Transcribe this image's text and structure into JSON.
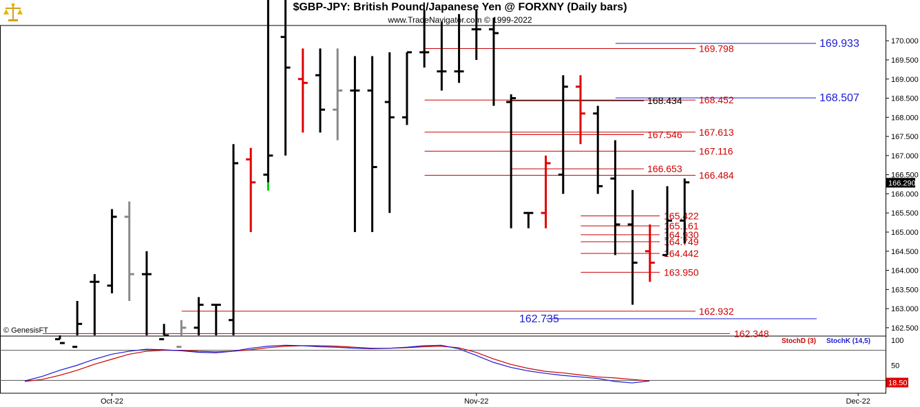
{
  "header": {
    "title": "$GBP-JPY:  British Pound/Japanese Yen @ FORXNY  (Daily bars)",
    "subtitle": "www.TradeNavigator.com © 1999-2022",
    "copyright": "© GenesisFT",
    "logo_icon": "gold-balance-scale-icon"
  },
  "chart_data": [
    {
      "type": "ohlc",
      "name": "price",
      "ylim": [
        162.3,
        170.4
      ],
      "y_ticks": [
        "170.000",
        "169.500",
        "169.000",
        "168.500",
        "168.000",
        "167.500",
        "167.000",
        "166.500",
        "166.000",
        "165.500",
        "165.000",
        "164.500",
        "164.000",
        "163.500",
        "163.000",
        "162.500"
      ],
      "last_price_label": "166.290",
      "x_ticks": [
        {
          "label": "Oct-22",
          "bar": 3
        },
        {
          "label": "Nov-22",
          "bar": 24
        },
        {
          "label": "Dec-22",
          "bar": 46
        }
      ],
      "bars": [
        {
          "o": 162.2,
          "h": 162.2,
          "l": 161.8,
          "c": 162.1,
          "color": "black"
        },
        {
          "o": 162.0,
          "h": 163.2,
          "l": 161.9,
          "c": 162.6,
          "color": "black"
        },
        {
          "o": 163.7,
          "h": 163.9,
          "l": 162.1,
          "c": 163.7,
          "color": "black"
        },
        {
          "o": 163.6,
          "h": 165.6,
          "l": 163.4,
          "c": 165.4,
          "color": "black"
        },
        {
          "o": 165.4,
          "h": 165.8,
          "l": 163.2,
          "c": 163.9,
          "color": "gray"
        },
        {
          "o": 163.9,
          "h": 164.5,
          "l": 162.3,
          "c": 163.9,
          "color": "black"
        },
        {
          "o": 162.2,
          "h": 162.6,
          "l": 161.9,
          "c": 162.3,
          "color": "black"
        },
        {
          "o": 162.0,
          "h": 162.7,
          "l": 161.8,
          "c": 162.5,
          "color": "gray"
        },
        {
          "o": 162.5,
          "h": 163.3,
          "l": 162.3,
          "c": 163.1,
          "color": "black"
        },
        {
          "o": 163.1,
          "h": 163.1,
          "l": 162.3,
          "c": 163.1,
          "color": "black"
        },
        {
          "o": 162.7,
          "h": 167.3,
          "l": 162.3,
          "c": 166.8,
          "color": "black"
        },
        {
          "o": 166.9,
          "h": 167.2,
          "l": 165.0,
          "c": 166.3,
          "color": "red"
        },
        {
          "o": 166.5,
          "h": 171.1,
          "l": 166.3,
          "c": 167.0,
          "color": "black",
          "base_highlight": "green"
        },
        {
          "o": 170.1,
          "h": 171.1,
          "l": 167.0,
          "c": 169.3,
          "color": "black"
        },
        {
          "o": 169.0,
          "h": 169.8,
          "l": 167.6,
          "c": 168.9,
          "color": "red"
        },
        {
          "o": 169.1,
          "h": 169.8,
          "l": 167.6,
          "c": 168.2,
          "color": "black"
        },
        {
          "o": 168.2,
          "h": 169.8,
          "l": 167.4,
          "c": 168.7,
          "color": "gray"
        },
        {
          "o": 168.7,
          "h": 169.6,
          "l": 165.0,
          "c": 168.7,
          "color": "black"
        },
        {
          "o": 168.7,
          "h": 169.6,
          "l": 165.0,
          "c": 166.7,
          "color": "black"
        },
        {
          "o": 168.4,
          "h": 169.7,
          "l": 165.5,
          "c": 168.0,
          "color": "black"
        },
        {
          "o": 168.0,
          "h": 169.7,
          "l": 167.8,
          "c": 169.7,
          "color": "black"
        },
        {
          "o": 169.7,
          "h": 170.8,
          "l": 169.3,
          "c": 169.7,
          "color": "black"
        },
        {
          "o": 169.2,
          "h": 170.5,
          "l": 168.7,
          "c": 169.2,
          "color": "black"
        },
        {
          "o": 169.2,
          "h": 170.7,
          "l": 168.9,
          "c": 169.2,
          "color": "black"
        },
        {
          "o": 170.3,
          "h": 170.8,
          "l": 169.5,
          "c": 170.3,
          "color": "black"
        },
        {
          "o": 170.3,
          "h": 170.6,
          "l": 168.3,
          "c": 170.2,
          "color": "black"
        },
        {
          "o": 168.4,
          "h": 168.6,
          "l": 165.1,
          "c": 168.5,
          "color": "black"
        },
        {
          "o": 165.5,
          "h": 165.5,
          "l": 165.1,
          "c": 165.5,
          "color": "black"
        },
        {
          "o": 165.5,
          "h": 167.0,
          "l": 165.1,
          "c": 166.8,
          "color": "red"
        },
        {
          "o": 166.5,
          "h": 169.1,
          "l": 166.0,
          "c": 168.8,
          "color": "black"
        },
        {
          "o": 168.8,
          "h": 169.1,
          "l": 167.3,
          "c": 168.1,
          "color": "red"
        },
        {
          "o": 168.1,
          "h": 168.3,
          "l": 166.0,
          "c": 166.2,
          "color": "black"
        },
        {
          "o": 166.4,
          "h": 167.4,
          "l": 164.4,
          "c": 165.2,
          "color": "black"
        },
        {
          "o": 165.2,
          "h": 166.1,
          "l": 163.1,
          "c": 164.2,
          "color": "black"
        },
        {
          "o": 164.5,
          "h": 165.2,
          "l": 163.7,
          "c": 164.2,
          "color": "red"
        },
        {
          "o": 164.4,
          "h": 166.2,
          "l": 164.4,
          "c": 165.3,
          "color": "black"
        },
        {
          "o": 165.3,
          "h": 166.4,
          "l": 164.7,
          "c": 166.3,
          "color": "black"
        }
      ],
      "levels": [
        {
          "value": 169.933,
          "label": "169.933",
          "color": "#1a1ad6",
          "x_from_bar": 34,
          "label_side": "right"
        },
        {
          "value": 169.798,
          "label": "169.798",
          "color": "#cc0000",
          "x_from_bar": 23
        },
        {
          "value": 168.507,
          "label": "168.507",
          "color": "#1a1ad6",
          "x_from_bar": 34,
          "label_side": "right"
        },
        {
          "value": 168.452,
          "label": "168.452",
          "color": "#cc0000",
          "x_from_bar": 23
        },
        {
          "value": 168.434,
          "label": "168.434",
          "color": "#000000",
          "x_from_bar": 28,
          "label_side": "inner"
        },
        {
          "value": 167.613,
          "label": "167.613",
          "color": "#cc0000",
          "x_from_bar": 23
        },
        {
          "value": 167.546,
          "label": "167.546",
          "color": "#cc0000",
          "x_from_bar": 28,
          "label_side": "inner"
        },
        {
          "value": 167.116,
          "label": "167.116",
          "color": "#cc0000",
          "x_from_bar": 23
        },
        {
          "value": 166.653,
          "label": "166.653",
          "color": "#cc0000",
          "x_from_bar": 28,
          "label_side": "inner"
        },
        {
          "value": 166.484,
          "label": "166.484",
          "color": "#cc0000",
          "x_from_bar": 23
        },
        {
          "value": 165.422,
          "label": "165.422",
          "color": "#cc0000",
          "x_from_bar": 32,
          "label_side": "short"
        },
        {
          "value": 165.161,
          "label": "165.161",
          "color": "#cc0000",
          "x_from_bar": 32,
          "label_side": "short"
        },
        {
          "value": 164.93,
          "label": "164.930",
          "color": "#cc0000",
          "x_from_bar": 32,
          "label_side": "short"
        },
        {
          "value": 164.749,
          "label": "164.749",
          "color": "#cc0000",
          "x_from_bar": 32,
          "label_side": "short"
        },
        {
          "value": 164.442,
          "label": "164.442",
          "color": "#cc0000",
          "x_from_bar": 32,
          "label_side": "short"
        },
        {
          "value": 163.95,
          "label": "163.950",
          "color": "#cc0000",
          "x_from_bar": 32,
          "label_side": "short"
        },
        {
          "value": 162.932,
          "label": "162.932",
          "color": "#cc0000",
          "x_from_bar": 9
        },
        {
          "value": 162.735,
          "label": "162.735",
          "color": "#1a1ad6",
          "x_from_bar": 30,
          "label_side": "left"
        },
        {
          "value": 162.348,
          "label": "162.348",
          "color": "#cc0000",
          "x_from_bar": 1,
          "label_side": "far"
        }
      ]
    },
    {
      "type": "line",
      "name": "stochastic",
      "ylim": [
        0,
        100
      ],
      "y_ticks": [
        {
          "label": "100",
          "value": 100
        },
        {
          "label": "50",
          "value": 50
        }
      ],
      "reference_lines": [
        80,
        20
      ],
      "last_value_label": "18.50",
      "legend": [
        {
          "name": "StochD (3)",
          "color": "#cc0000"
        },
        {
          "name": "StochK (14,5)",
          "color": "#1a1ad6"
        }
      ],
      "series": [
        {
          "name": "StochD (3)",
          "color": "#cc0000",
          "values": [
            18,
            22,
            30,
            40,
            52,
            62,
            72,
            78,
            80,
            80,
            78,
            77,
            78,
            81,
            85,
            88,
            89,
            89,
            88,
            86,
            84,
            84,
            85,
            87,
            88,
            85,
            76,
            63,
            52,
            44,
            38,
            35,
            31,
            27,
            25,
            22,
            19
          ]
        },
        {
          "name": "StochK (14,5)",
          "color": "#1a1ad6",
          "values": [
            19,
            28,
            40,
            50,
            62,
            72,
            78,
            82,
            81,
            79,
            76,
            75,
            78,
            84,
            88,
            90,
            89,
            87,
            86,
            84,
            83,
            84,
            86,
            89,
            90,
            83,
            70,
            56,
            46,
            39,
            34,
            30,
            27,
            24,
            18,
            15,
            19
          ]
        }
      ]
    }
  ]
}
